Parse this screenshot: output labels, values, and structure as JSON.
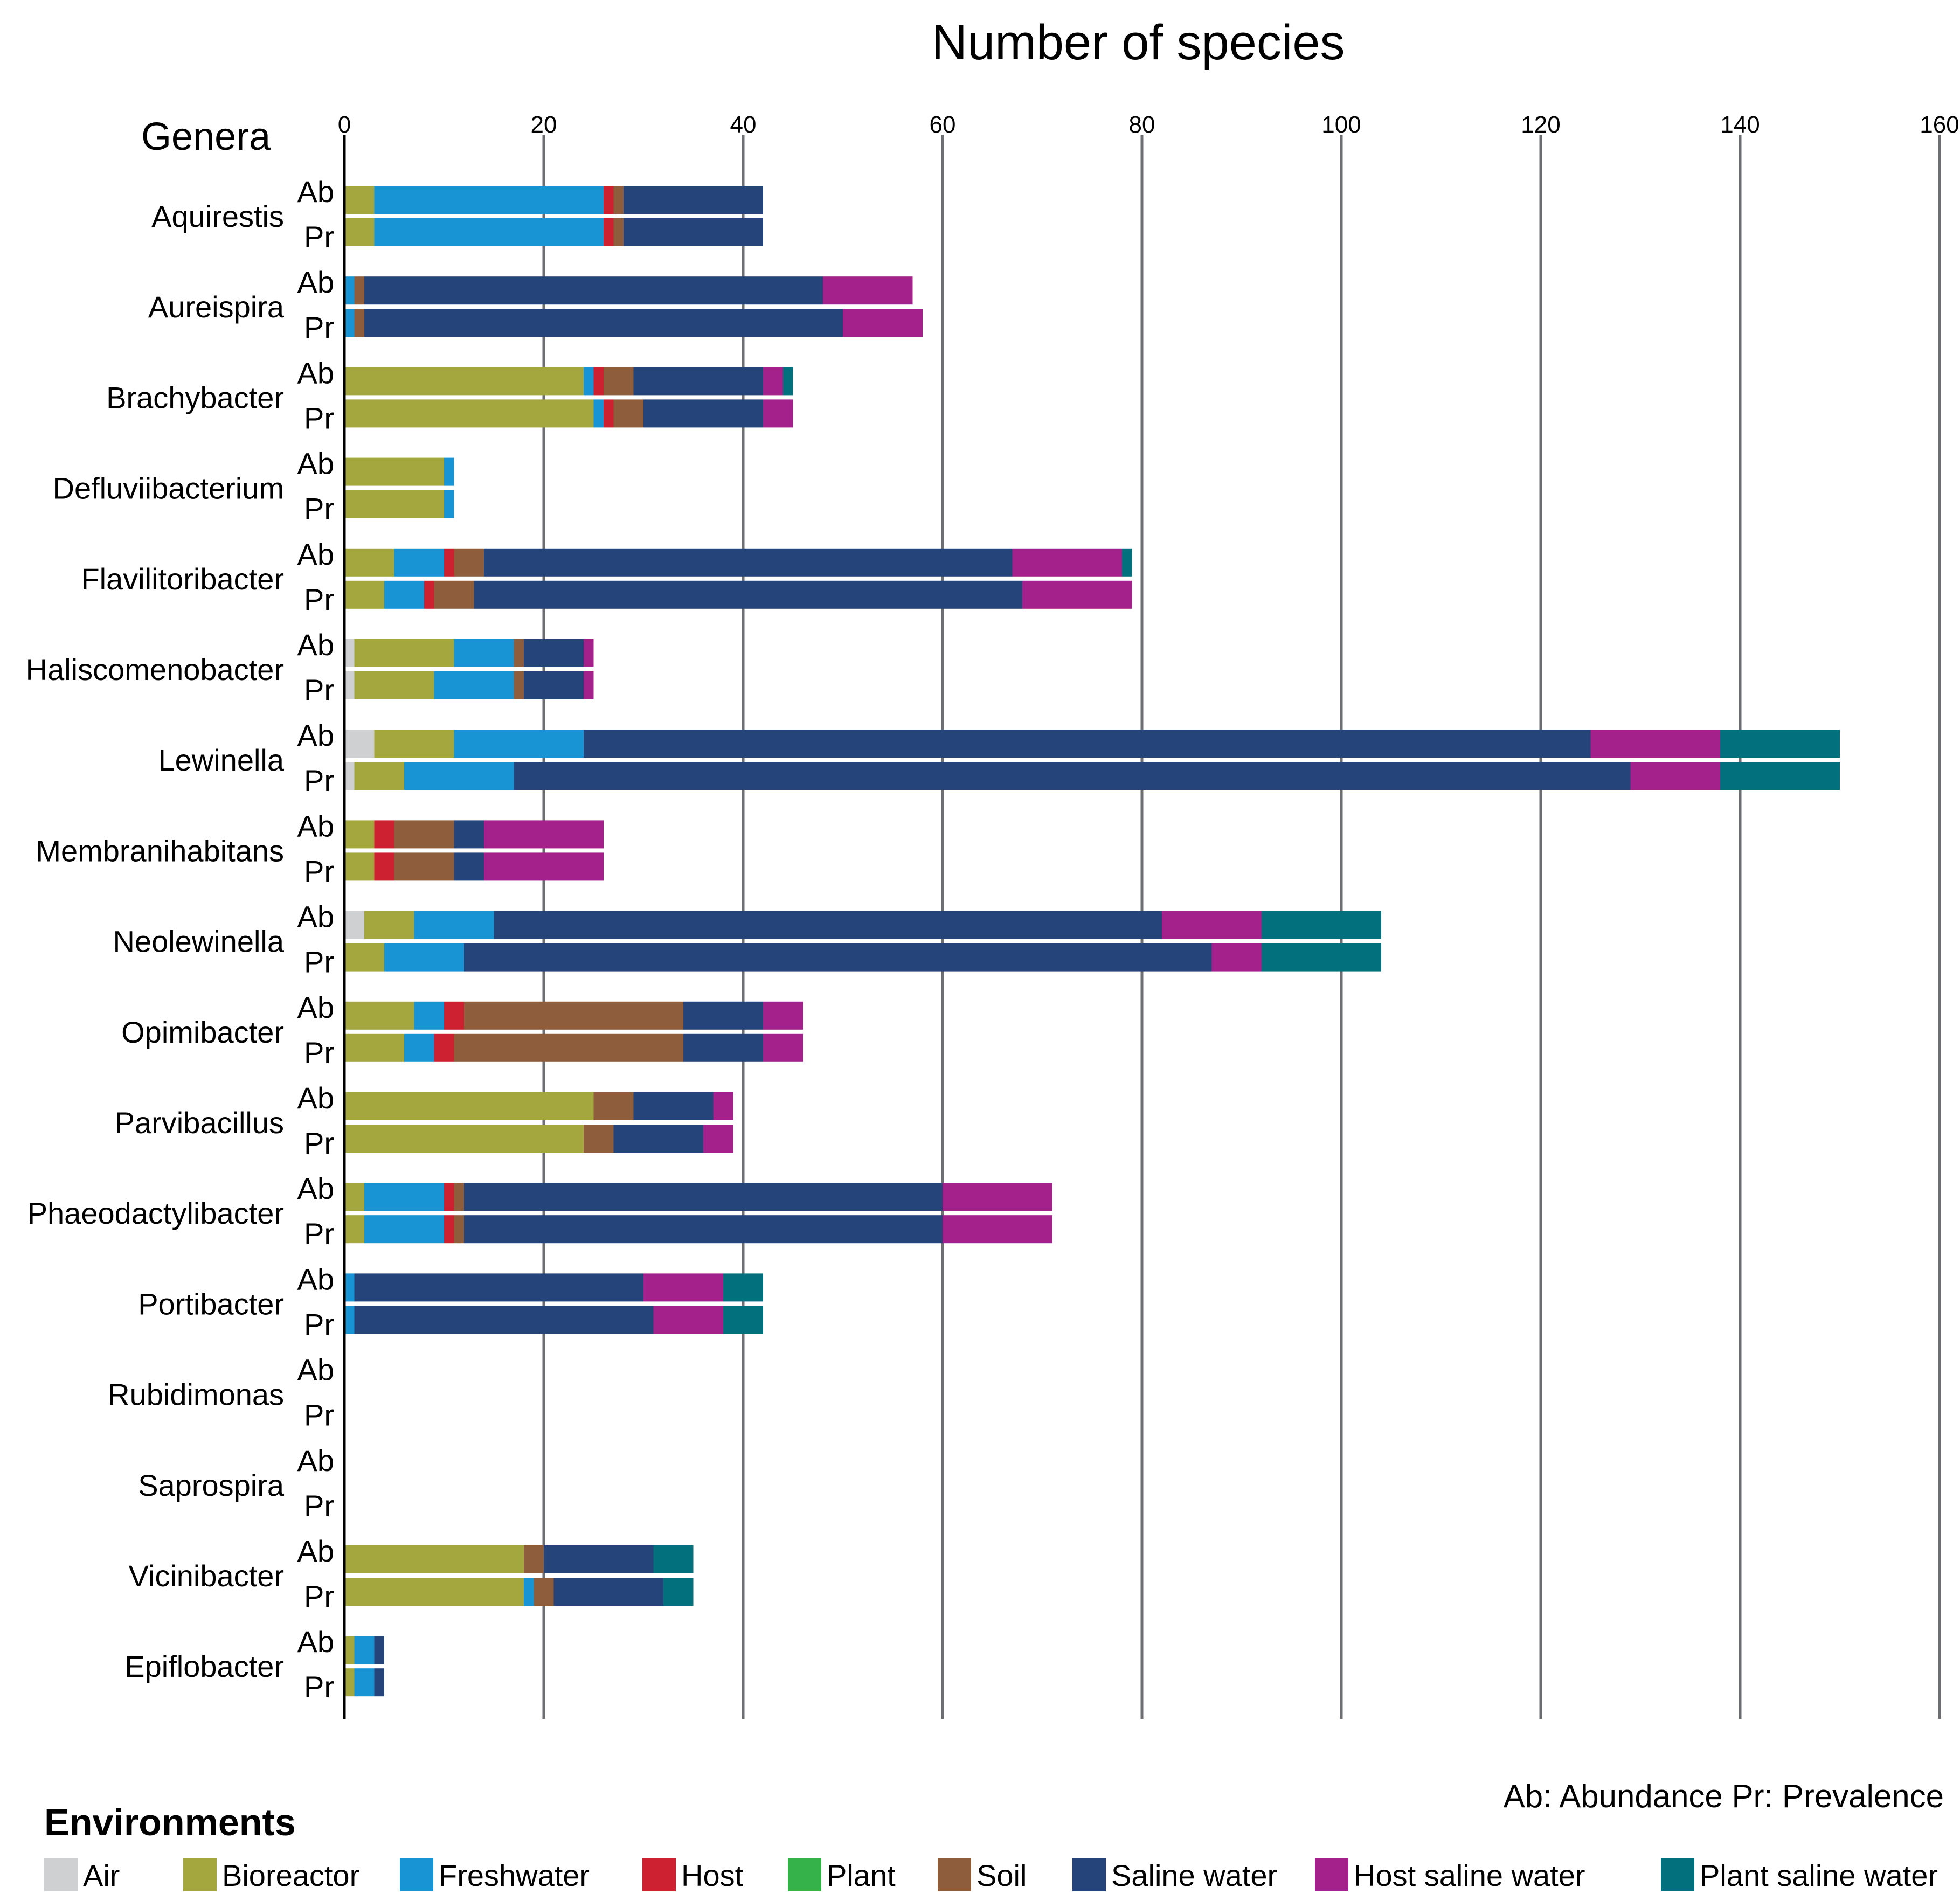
{
  "chart_data": {
    "type": "bar",
    "orientation": "horizontal",
    "stacked": true,
    "title": "Number of species",
    "category_axis_title": "Genera",
    "x_ticks": [
      0,
      20,
      40,
      60,
      80,
      100,
      120,
      140,
      160
    ],
    "xlim": [
      0,
      160
    ],
    "grid": "vertical gridlines",
    "row_labels": [
      "Ab",
      "Pr"
    ],
    "note": "Ab: Abundance  Pr: Prevalence",
    "legend_title": "Environments",
    "legend_position": "bottom",
    "environments": [
      {
        "name": "Air",
        "color": "#cfd0d2"
      },
      {
        "name": "Bioreactor",
        "color": "#a3a73d"
      },
      {
        "name": "Freshwater",
        "color": "#1893d3"
      },
      {
        "name": "Host",
        "color": "#cd2030"
      },
      {
        "name": "Plant",
        "color": "#35b24a"
      },
      {
        "name": "Soil",
        "color": "#8d5d3c"
      },
      {
        "name": "Saline water",
        "color": "#254479"
      },
      {
        "name": "Host saline water",
        "color": "#a4208a"
      },
      {
        "name": "Plant saline water",
        "color": "#02717d"
      }
    ],
    "genera": [
      {
        "name": "Aquirestis",
        "Ab": [
          0,
          3,
          23,
          1,
          0,
          1,
          14,
          0,
          0
        ],
        "Pr": [
          0,
          3,
          23,
          1,
          0,
          1,
          14,
          0,
          0
        ]
      },
      {
        "name": "Aureispira",
        "Ab": [
          0,
          0,
          1,
          0,
          0,
          1,
          46,
          9,
          0
        ],
        "Pr": [
          0,
          0,
          1,
          0,
          0,
          1,
          48,
          8,
          0
        ]
      },
      {
        "name": "Brachybacter",
        "Ab": [
          0,
          24,
          1,
          1,
          0,
          3,
          13,
          2,
          1
        ],
        "Pr": [
          0,
          25,
          1,
          1,
          0,
          3,
          12,
          3,
          0
        ]
      },
      {
        "name": "Defluviibacterium",
        "Ab": [
          0,
          10,
          1,
          0,
          0,
          0,
          0,
          0,
          0
        ],
        "Pr": [
          0,
          10,
          1,
          0,
          0,
          0,
          0,
          0,
          0
        ]
      },
      {
        "name": "Flavilitoribacter",
        "Ab": [
          0,
          5,
          5,
          1,
          0,
          3,
          53,
          11,
          1
        ],
        "Pr": [
          0,
          4,
          4,
          1,
          0,
          4,
          55,
          11,
          0
        ]
      },
      {
        "name": "Haliscomenobacter",
        "Ab": [
          1,
          10,
          6,
          0,
          0,
          1,
          6,
          1,
          0
        ],
        "Pr": [
          1,
          8,
          8,
          0,
          0,
          1,
          6,
          1,
          0
        ]
      },
      {
        "name": "Lewinella",
        "Ab": [
          3,
          8,
          13,
          0,
          0,
          0,
          101,
          13,
          12
        ],
        "Pr": [
          1,
          5,
          11,
          0,
          0,
          0,
          112,
          9,
          12
        ]
      },
      {
        "name": "Membranihabitans",
        "Ab": [
          0,
          3,
          0,
          2,
          0,
          6,
          3,
          12,
          0
        ],
        "Pr": [
          0,
          3,
          0,
          2,
          0,
          6,
          3,
          12,
          0
        ]
      },
      {
        "name": "Neolewinella",
        "Ab": [
          2,
          5,
          8,
          0,
          0,
          0,
          67,
          10,
          12
        ],
        "Pr": [
          0,
          4,
          8,
          0,
          0,
          0,
          75,
          5,
          12
        ]
      },
      {
        "name": "Opimibacter",
        "Ab": [
          0,
          7,
          3,
          2,
          0,
          22,
          8,
          4,
          0
        ],
        "Pr": [
          0,
          6,
          3,
          2,
          0,
          23,
          8,
          4,
          0
        ]
      },
      {
        "name": "Parvibacillus",
        "Ab": [
          0,
          25,
          0,
          0,
          0,
          4,
          8,
          2,
          0
        ],
        "Pr": [
          0,
          24,
          0,
          0,
          0,
          3,
          9,
          3,
          0
        ]
      },
      {
        "name": "Phaeodactylibacter",
        "Ab": [
          0,
          2,
          8,
          1,
          0,
          1,
          48,
          11,
          0
        ],
        "Pr": [
          0,
          2,
          8,
          1,
          0,
          1,
          48,
          11,
          0
        ]
      },
      {
        "name": "Portibacter",
        "Ab": [
          0,
          0,
          1,
          0,
          0,
          0,
          29,
          8,
          4
        ],
        "Pr": [
          0,
          0,
          1,
          0,
          0,
          0,
          30,
          7,
          4
        ]
      },
      {
        "name": "Rubidimonas",
        "Ab": [
          0,
          0,
          0,
          0,
          0,
          0,
          0,
          0,
          0
        ],
        "Pr": [
          0,
          0,
          0,
          0,
          0,
          0,
          0,
          0,
          0
        ]
      },
      {
        "name": "Saprospira",
        "Ab": [
          0,
          0,
          0,
          0,
          0,
          0,
          0,
          0,
          0
        ],
        "Pr": [
          0,
          0,
          0,
          0,
          0,
          0,
          0,
          0,
          0
        ]
      },
      {
        "name": "Vicinibacter",
        "Ab": [
          0,
          18,
          0,
          0,
          0,
          2,
          11,
          0,
          4
        ],
        "Pr": [
          0,
          18,
          1,
          0,
          0,
          2,
          11,
          0,
          3
        ]
      },
      {
        "name": "Epiflobacter",
        "Ab": [
          0,
          1,
          2,
          0,
          0,
          0,
          1,
          0,
          0
        ],
        "Pr": [
          0,
          1,
          2,
          0,
          0,
          0,
          1,
          0,
          0
        ]
      }
    ]
  }
}
